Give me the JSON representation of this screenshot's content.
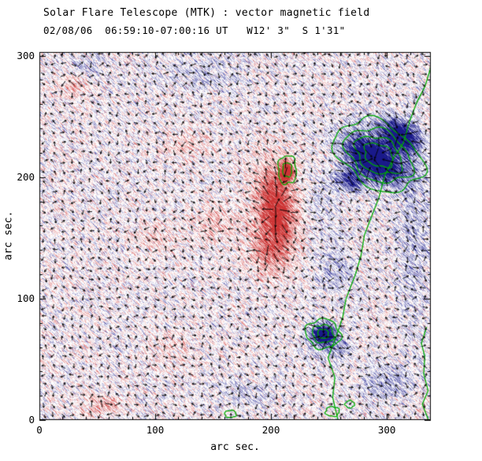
{
  "chart_data": {
    "type": "heatmap",
    "title": "Solar Flare Telescope (MTK) : vector magnetic field",
    "subtitle": "02/08/06  06:59:10-07:00:16 UT   W12' 3\"  S 1'31\"",
    "xlabel": "arc sec.",
    "ylabel": "arc sec.",
    "xlim": [
      0,
      338
    ],
    "ylim": [
      0,
      303
    ],
    "xticks": [
      0,
      100,
      200,
      300
    ],
    "yticks": [
      0,
      100,
      200,
      300
    ],
    "minor_tick_step": 20,
    "grid": false,
    "colors": {
      "positive_polarity": "#cd3434",
      "negative_polarity": "#19198a",
      "contour": "#00aa00",
      "arrows": "#000000",
      "frame": "#000000",
      "background": "#ffffff"
    },
    "field_regions": [
      {
        "name": "negative-main-core-a",
        "x": 287,
        "y": 215,
        "rx": 24,
        "ry": 13,
        "angle": -28,
        "amp": -1.55
      },
      {
        "name": "negative-main-core-b",
        "x": 311,
        "y": 235,
        "rx": 18,
        "ry": 12,
        "angle": -30,
        "amp": -1.35
      },
      {
        "name": "negative-main-tail",
        "x": 268,
        "y": 198,
        "rx": 13,
        "ry": 9,
        "angle": -20,
        "amp": -0.95
      },
      {
        "name": "negative-main-halo",
        "x": 293,
        "y": 218,
        "rx": 38,
        "ry": 24,
        "angle": -28,
        "amp": -0.5
      },
      {
        "name": "negative-south-spot",
        "x": 245,
        "y": 71,
        "rx": 10,
        "ry": 8,
        "angle": 0,
        "amp": -1.55
      },
      {
        "name": "negative-south-halo",
        "x": 249,
        "y": 64,
        "rx": 20,
        "ry": 13,
        "angle": -25,
        "amp": -0.4
      },
      {
        "name": "positive-main",
        "x": 204,
        "y": 172,
        "rx": 15,
        "ry": 34,
        "angle": 6,
        "amp": 0.9
      },
      {
        "name": "positive-core",
        "x": 213,
        "y": 205,
        "rx": 6,
        "ry": 9,
        "angle": 0,
        "amp": 1.3
      },
      {
        "name": "positive-south-diffuse",
        "x": 197,
        "y": 140,
        "rx": 19,
        "ry": 22,
        "angle": 0,
        "amp": 0.45
      },
      {
        "name": "positive-halo",
        "x": 205,
        "y": 180,
        "rx": 27,
        "ry": 46,
        "angle": 5,
        "amp": 0.3
      },
      {
        "name": "faint-positive-1",
        "x": 150,
        "y": 162,
        "rx": 26,
        "ry": 16,
        "angle": 0,
        "amp": 0.3
      },
      {
        "name": "faint-positive-2",
        "x": 97,
        "y": 150,
        "rx": 20,
        "ry": 13,
        "angle": 0,
        "amp": 0.26
      },
      {
        "name": "faint-positive-3",
        "x": 30,
        "y": 277,
        "rx": 15,
        "ry": 11,
        "angle": 0,
        "amp": 0.36
      },
      {
        "name": "faint-positive-4",
        "x": 55,
        "y": 12,
        "rx": 20,
        "ry": 9,
        "angle": 0,
        "amp": 0.4
      },
      {
        "name": "faint-positive-5",
        "x": 128,
        "y": 228,
        "rx": 22,
        "ry": 13,
        "angle": 0,
        "amp": 0.26
      },
      {
        "name": "faint-positive-6",
        "x": 113,
        "y": 58,
        "rx": 22,
        "ry": 16,
        "angle": 0,
        "amp": 0.2
      },
      {
        "name": "faint-negative-1",
        "x": 140,
        "y": 283,
        "rx": 36,
        "ry": 15,
        "angle": 0,
        "amp": -0.24
      },
      {
        "name": "faint-negative-2",
        "x": 322,
        "y": 150,
        "rx": 16,
        "ry": 85,
        "angle": 0,
        "amp": -0.28
      },
      {
        "name": "faint-negative-3",
        "x": 300,
        "y": 30,
        "rx": 22,
        "ry": 17,
        "angle": 0,
        "amp": -0.36
      },
      {
        "name": "faint-negative-4",
        "x": 243,
        "y": 180,
        "rx": 15,
        "ry": 22,
        "angle": 0,
        "amp": -0.26
      },
      {
        "name": "faint-negative-5",
        "x": 175,
        "y": 22,
        "rx": 26,
        "ry": 14,
        "angle": 0,
        "amp": -0.2
      },
      {
        "name": "faint-negative-6",
        "x": 255,
        "y": 125,
        "rx": 20,
        "ry": 25,
        "angle": 0,
        "amp": -0.28
      },
      {
        "name": "faint-negative-7",
        "x": 40,
        "y": 290,
        "rx": 20,
        "ry": 12,
        "angle": 0,
        "amp": -0.22
      }
    ],
    "contours": {
      "ellipse_sets": [
        {
          "cx": 293,
          "cy": 218,
          "rx": 40,
          "ry": 26,
          "angle": -28,
          "scales": [
            1.0,
            0.76,
            0.54,
            0.34
          ]
        },
        {
          "cx": 245,
          "cy": 71,
          "rx": 15,
          "ry": 12,
          "angle": -10,
          "scales": [
            1.0,
            0.62,
            0.32
          ]
        },
        {
          "cx": 214,
          "cy": 206,
          "rx": 8,
          "ry": 12,
          "angle": 0,
          "scales": [
            1.0,
            0.5
          ]
        },
        {
          "cx": 253,
          "cy": 7,
          "rx": 6,
          "ry": 4,
          "angle": 0,
          "scales": [
            1.0
          ]
        },
        {
          "cx": 268,
          "cy": 13,
          "rx": 4,
          "ry": 3,
          "angle": 0,
          "scales": [
            1.0
          ]
        },
        {
          "cx": 165,
          "cy": 5,
          "rx": 5,
          "ry": 3,
          "angle": 0,
          "scales": [
            1.0
          ]
        }
      ],
      "lines": [
        {
          "points": [
            [
              258,
              0
            ],
            [
              252,
              18
            ],
            [
              256,
              35
            ],
            [
              250,
              52
            ],
            [
              255,
              68
            ],
            [
              262,
              85
            ],
            [
              266,
              100
            ],
            [
              272,
              119
            ],
            [
              277,
              136
            ],
            [
              282,
              152
            ],
            [
              287,
              168
            ],
            [
              292,
              184
            ],
            [
              299,
              200
            ],
            [
              306,
              215
            ],
            [
              313,
              229
            ],
            [
              320,
              245
            ],
            [
              327,
              262
            ],
            [
              332,
              275
            ],
            [
              337,
              288
            ],
            [
              340,
              303
            ]
          ]
        },
        {
          "points": [
            [
              336,
              0
            ],
            [
              332,
              12
            ],
            [
              335,
              25
            ],
            [
              331,
              38
            ],
            [
              334,
              52
            ],
            [
              330,
              64
            ],
            [
              333,
              76
            ]
          ]
        }
      ]
    },
    "arrows": {
      "grid_step_arcsec": 8,
      "style": "transverse-field vectors; orientation follows field near strong regions, random in quiet regions; length scales with field strength"
    }
  }
}
